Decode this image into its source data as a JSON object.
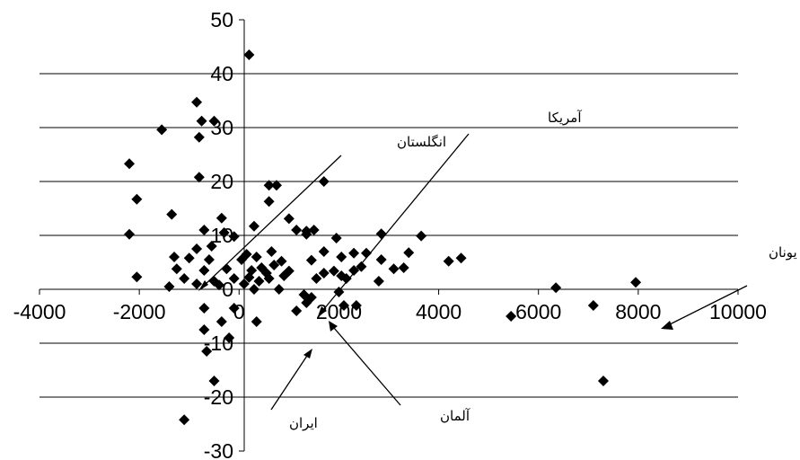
{
  "chart_data": {
    "type": "scatter",
    "title": "",
    "xlabel": "",
    "ylabel": "",
    "xlim": [
      -4000,
      10000
    ],
    "ylim": [
      -30,
      50
    ],
    "x_ticks": [
      -4000,
      -2000,
      0,
      2000,
      4000,
      6000,
      8000,
      10000
    ],
    "y_ticks": [
      50,
      40,
      30,
      20,
      10,
      0,
      -10,
      -20,
      -30
    ],
    "x_tick_labels": [
      "-4000",
      "-2000",
      "0",
      "2000",
      "4000",
      "6000",
      "8000",
      "10000"
    ],
    "y_tick_labels": [
      "50",
      "40",
      "30",
      "20",
      "10",
      "0",
      "-10",
      "-20",
      "-30"
    ],
    "grid": "horizontal",
    "legend": "none",
    "marker": "diamond",
    "marker_color": "#000000",
    "series": [
      {
        "points": [
          [
            200,
            43.5
          ],
          [
            -850,
            34.7
          ],
          [
            -750,
            31.2
          ],
          [
            -500,
            31.2
          ],
          [
            -800,
            28.2
          ],
          [
            -1550,
            29.6
          ],
          [
            -2200,
            23.3
          ],
          [
            -800,
            20.8
          ],
          [
            600,
            19.3
          ],
          [
            750,
            19.3
          ],
          [
            1700,
            20.0
          ],
          [
            -2050,
            16.7
          ],
          [
            600,
            16.3
          ],
          [
            -1350,
            13.9
          ],
          [
            -350,
            13.2
          ],
          [
            1000,
            13.1
          ],
          [
            300,
            11.7
          ],
          [
            -700,
            11.0
          ],
          [
            -300,
            10.5
          ],
          [
            1150,
            11.0
          ],
          [
            1350,
            10.8
          ],
          [
            1500,
            11.0
          ],
          [
            -2200,
            10.2
          ],
          [
            -100,
            9.8
          ],
          [
            1350,
            10.2
          ],
          [
            2850,
            10.3
          ],
          [
            3650,
            9.9
          ],
          [
            1950,
            9.5
          ],
          [
            -550,
            8.0
          ],
          [
            -850,
            7.5
          ],
          [
            150,
            6.5
          ],
          [
            650,
            7.0
          ],
          [
            1700,
            7.0
          ],
          [
            2300,
            6.7
          ],
          [
            2550,
            6.7
          ],
          [
            -1300,
            6.0
          ],
          [
            -1000,
            5.8
          ],
          [
            -600,
            5.5
          ],
          [
            50,
            5.5
          ],
          [
            350,
            6.0
          ],
          [
            850,
            5.2
          ],
          [
            1450,
            5.4
          ],
          [
            2050,
            6.0
          ],
          [
            3400,
            6.8
          ],
          [
            4200,
            5.2
          ],
          [
            4450,
            5.8
          ],
          [
            -1250,
            3.8
          ],
          [
            -700,
            3.5
          ],
          [
            -250,
            3.8
          ],
          [
            250,
            3.5
          ],
          [
            450,
            4.0
          ],
          [
            550,
            3.0
          ],
          [
            700,
            4.5
          ],
          [
            1000,
            3.4
          ],
          [
            1700,
            3.0
          ],
          [
            1900,
            3.4
          ],
          [
            2050,
            2.5
          ],
          [
            2300,
            3.5
          ],
          [
            2450,
            4.2
          ],
          [
            2850,
            5.5
          ],
          [
            3100,
            3.8
          ],
          [
            3300,
            4.0
          ],
          [
            -2050,
            2.3
          ],
          [
            -1100,
            2.0
          ],
          [
            -500,
            1.5
          ],
          [
            -100,
            2.0
          ],
          [
            200,
            2.2
          ],
          [
            400,
            1.5
          ],
          [
            600,
            2.0
          ],
          [
            900,
            2.5
          ],
          [
            1550,
            2.0
          ],
          [
            2150,
            2.0
          ],
          [
            -1400,
            0.5
          ],
          [
            -850,
            1.0
          ],
          [
            -400,
            0.8
          ],
          [
            100,
            1.0
          ],
          [
            300,
            0.0
          ],
          [
            800,
            0.0
          ],
          [
            1300,
            -1.0
          ],
          [
            1450,
            -1.5
          ],
          [
            2000,
            -0.5
          ],
          [
            2800,
            1.5
          ],
          [
            6350,
            0.3
          ],
          [
            7950,
            1.3
          ],
          [
            -700,
            -3.5
          ],
          [
            -100,
            -3.5
          ],
          [
            -350,
            -6.0
          ],
          [
            350,
            -6.0
          ],
          [
            -700,
            -7.5
          ],
          [
            -200,
            -9.0
          ],
          [
            1150,
            -4.0
          ],
          [
            1350,
            -2.5
          ],
          [
            2100,
            -3.0
          ],
          [
            2350,
            -3.0
          ],
          [
            5450,
            -5.0
          ],
          [
            7100,
            -3.0
          ],
          [
            -650,
            -11.5
          ],
          [
            -500,
            -17.0
          ],
          [
            -1100,
            -24.2
          ],
          [
            7300,
            -17.0
          ]
        ]
      }
    ],
    "annotations": [
      {
        "text": "انگلستان"
      },
      {
        "text": "آمریکا"
      },
      {
        "text": "یونان"
      },
      {
        "text": "ایران"
      },
      {
        "text": "آلمان"
      }
    ]
  }
}
